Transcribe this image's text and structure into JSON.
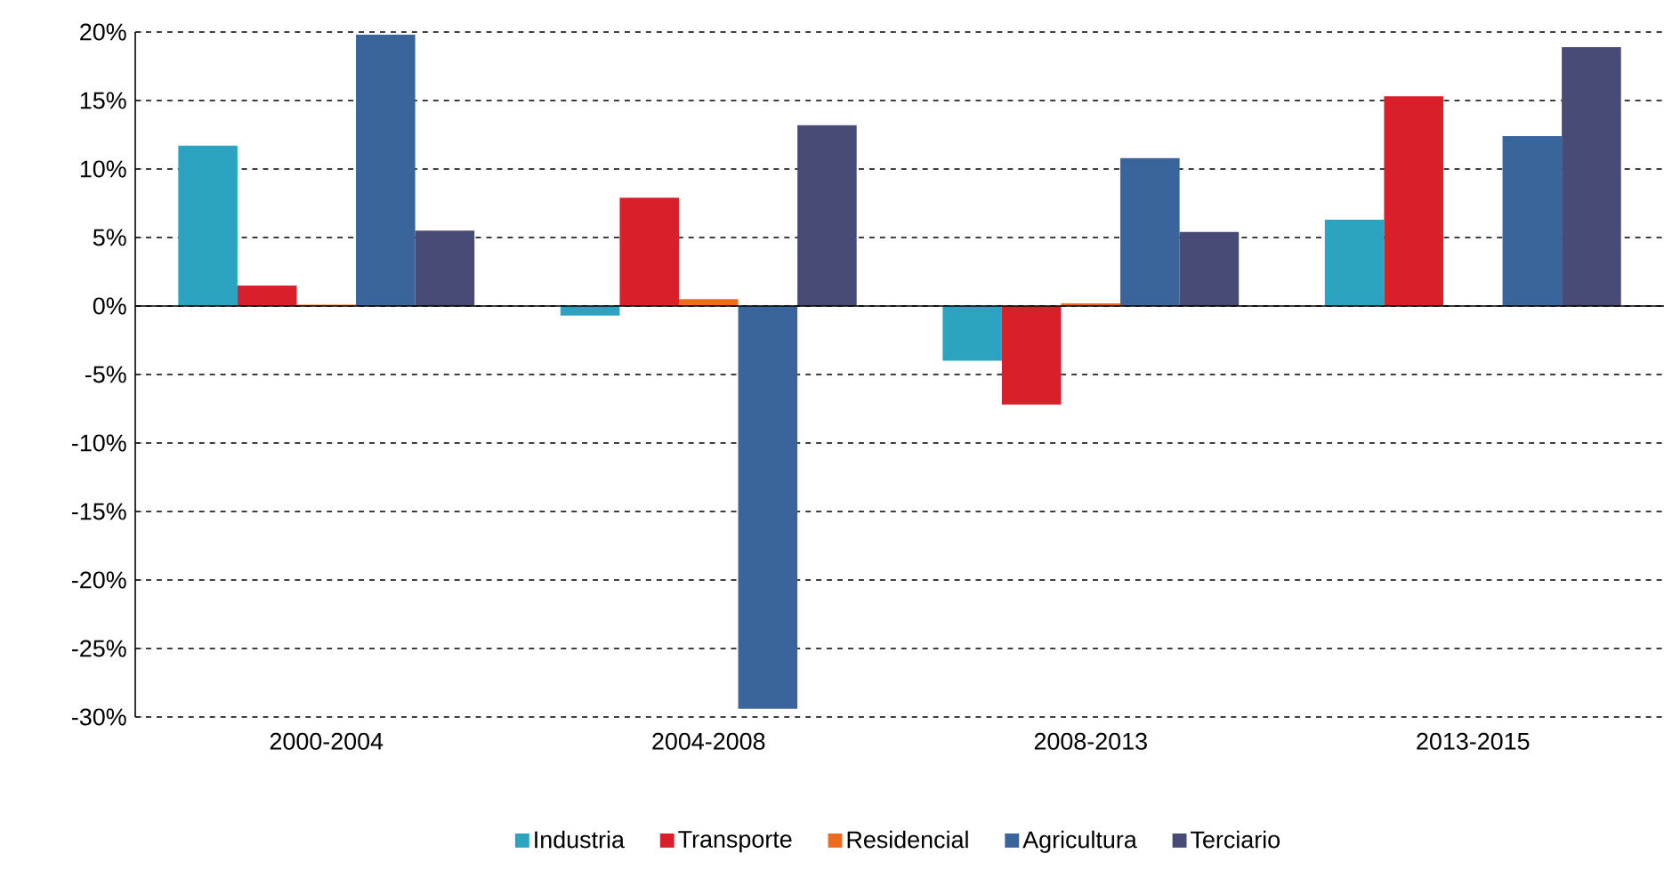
{
  "chart_data": {
    "type": "bar",
    "categories": [
      "2000-2004",
      "2004-2008",
      "2008-2013",
      "2013-2015"
    ],
    "series": [
      {
        "name": "Industria",
        "color": "#2ca3c0",
        "values": [
          11.7,
          -0.7,
          -4.0,
          6.3
        ]
      },
      {
        "name": "Transporte",
        "color": "#d9202a",
        "values": [
          1.5,
          7.9,
          -7.2,
          15.3
        ]
      },
      {
        "name": "Residencial",
        "color": "#ed6b1f",
        "values": [
          0.1,
          0.5,
          0.2,
          0
        ]
      },
      {
        "name": "Agricultura",
        "color": "#3a649c",
        "values": [
          19.8,
          -29.4,
          10.8,
          12.4
        ]
      },
      {
        "name": "Terciario",
        "color": "#474b76",
        "values": [
          5.5,
          13.2,
          5.4,
          18.9
        ]
      }
    ],
    "ylim": [
      -30,
      20
    ],
    "yticks": [
      {
        "value": -30,
        "label": "-30%"
      },
      {
        "value": -25,
        "label": "-25%"
      },
      {
        "value": -20,
        "label": "-20%"
      },
      {
        "value": -15,
        "label": "-15%"
      },
      {
        "value": -10,
        "label": "-10%"
      },
      {
        "value": -5,
        "label": "-5%"
      },
      {
        "value": 0,
        "label": "0%"
      },
      {
        "value": 5,
        "label": "5%"
      },
      {
        "value": 10,
        "label": "10%"
      },
      {
        "value": 15,
        "label": "15%"
      },
      {
        "value": 20,
        "label": "20%"
      }
    ],
    "grid": "y",
    "legend": "bottom"
  }
}
